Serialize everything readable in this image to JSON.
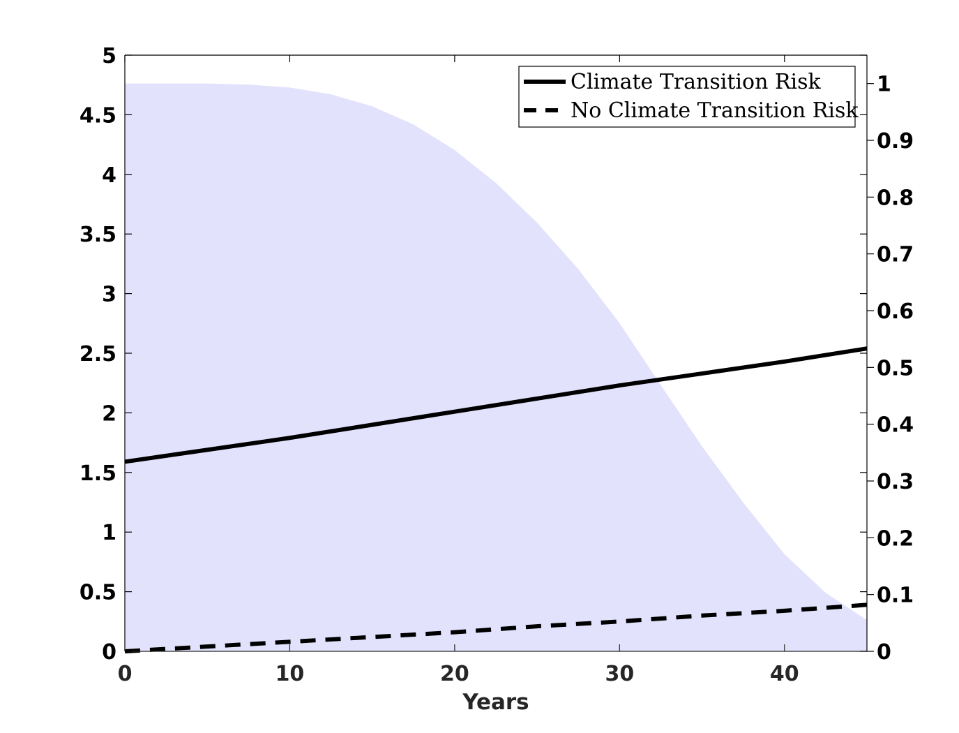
{
  "chart_data": {
    "type": "line",
    "title": "",
    "xlabel": "Years",
    "ylabel": "",
    "xlim": [
      0,
      45
    ],
    "ylim": [
      0,
      5
    ],
    "y2lim": [
      0,
      1.05
    ],
    "x_ticks": [
      "0",
      "10",
      "20",
      "30",
      "40"
    ],
    "y_ticks": [
      "0",
      "0.5",
      "1",
      "1.5",
      "2",
      "2.5",
      "3",
      "3.5",
      "4",
      "4.5",
      "5"
    ],
    "y2_ticks": [
      "0",
      "0.1",
      "0.2",
      "0.3",
      "0.4",
      "0.5",
      "0.6",
      "0.7",
      "0.8",
      "0.9",
      "1"
    ],
    "grid": false,
    "legend_position": "top-right",
    "series": [
      {
        "name": "Climate Transition Risk",
        "axis": "left",
        "style": "solid",
        "color": "#000000",
        "x": [
          0,
          5,
          10,
          15,
          20,
          25,
          30,
          35,
          40,
          45
        ],
        "values": [
          1.59,
          1.69,
          1.79,
          1.9,
          2.01,
          2.12,
          2.23,
          2.33,
          2.43,
          2.54
        ]
      },
      {
        "name": "No Climate Transition Risk",
        "axis": "left",
        "style": "dashed",
        "color": "#000000",
        "x": [
          0,
          5,
          10,
          15,
          20,
          25,
          30,
          35,
          40,
          45
        ],
        "values": [
          0.0,
          0.04,
          0.08,
          0.12,
          0.16,
          0.21,
          0.25,
          0.3,
          0.34,
          0.39
        ]
      }
    ],
    "area": {
      "axis": "right",
      "color": "#e2e2fc",
      "x": [
        0,
        2.5,
        5,
        7.5,
        10,
        12.5,
        15,
        17.5,
        20,
        22.5,
        25,
        27.5,
        30,
        32.5,
        35,
        37.5,
        40,
        42.5,
        45
      ],
      "values": [
        1.0,
        1.0,
        1.0,
        0.998,
        0.993,
        0.981,
        0.96,
        0.928,
        0.883,
        0.825,
        0.755,
        0.673,
        0.578,
        0.469,
        0.361,
        0.262,
        0.171,
        0.103,
        0.055
      ]
    }
  }
}
